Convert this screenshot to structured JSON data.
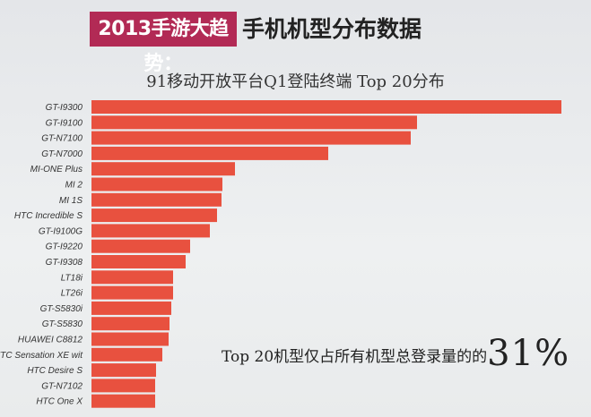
{
  "header": {
    "title_highlight": "2013手游大趋势：",
    "title_rest": "手机机型分布数据"
  },
  "chart_data": {
    "type": "bar",
    "orientation": "horizontal",
    "title": "91移动开放平台Q1登陆终端 Top 20分布",
    "xlabel": "",
    "ylabel": "",
    "value_units": "relative (no axis shown)",
    "grid": false,
    "bar_color": "#e8513f",
    "categories": [
      "GT-I9300",
      "GT-I9100",
      "GT-N7100",
      "GT-N7000",
      "MI-ONE Plus",
      "MI 2",
      "MI 1S",
      "HTC Incredible S",
      "GT-I9100G",
      "GT-I9220",
      "GT-I9308",
      "LT18i",
      "LT26i",
      "GT-S5830i",
      "GT-S5830",
      "HUAWEI C8812",
      "HTC Sensation XE wit",
      "HTC Desire S",
      "GT-N7102",
      "HTC One X"
    ],
    "values": [
      524,
      363,
      356,
      264,
      160,
      146,
      145,
      140,
      132,
      110,
      105,
      91,
      91,
      89,
      87,
      86,
      79,
      72,
      71,
      71
    ],
    "xlim": [
      0,
      524
    ]
  },
  "annotation": {
    "text": "Top 20机型仅占所有机型总登录量的的",
    "highlight": "31%"
  }
}
